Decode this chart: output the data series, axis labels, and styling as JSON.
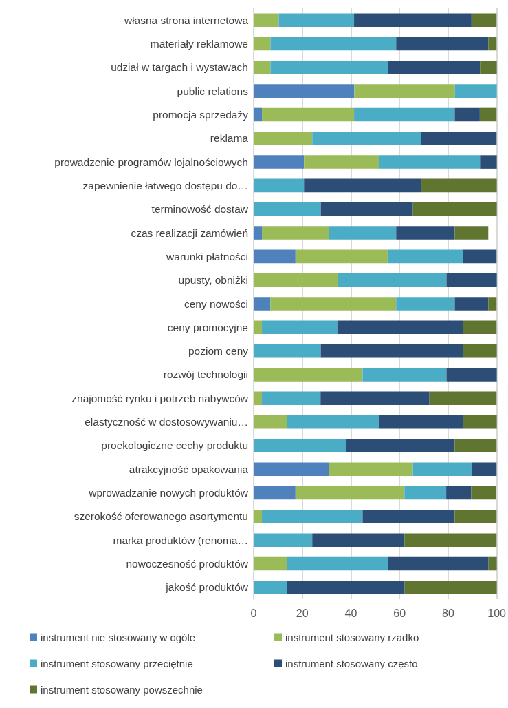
{
  "chart_data": {
    "type": "bar",
    "orientation": "horizontal",
    "stacked": true,
    "categories": [
      "własna strona internetowa",
      "materiały reklamowe",
      "udział w targach i wystawach",
      "public relations",
      "promocja sprzedaży",
      "reklama",
      "prowadzenie programów lojalnościowych",
      "zapewnienie łatwego dostępu do…",
      "terminowość dostaw",
      "czas realizacji zamówień",
      "warunki płatności",
      "upusty, obniżki",
      "ceny nowości",
      "ceny promocyjne",
      "poziom ceny",
      "rozwój technologii",
      "znajomość rynku i potrzeb nabywców",
      "elastyczność w dostosowywaniu…",
      "proekologiczne cechy produktu",
      "atrakcyjność opakowania",
      "wprowadzanie nowych produktów",
      "szerokość oferowanego asortymentu",
      "marka produktów (renoma…",
      "nowoczesność produktów",
      "jakość produktów"
    ],
    "series": [
      {
        "name": "instrument nie stosowany w ogóle",
        "color": "#4f81bd",
        "values": [
          0,
          0,
          0,
          41.4,
          3.4,
          0,
          20.7,
          0,
          0,
          3.4,
          17.2,
          0,
          6.9,
          0,
          0,
          0,
          0,
          0,
          0,
          31.0,
          17.2,
          0,
          0,
          0,
          0
        ]
      },
      {
        "name": "instrument stosowany rzadko",
        "color": "#9bbb59",
        "values": [
          10.3,
          6.9,
          6.9,
          41.4,
          37.9,
          24.1,
          31.0,
          0,
          0,
          27.6,
          37.9,
          34.5,
          51.7,
          3.4,
          0,
          44.8,
          3.4,
          13.8,
          0,
          34.5,
          44.8,
          3.4,
          0,
          13.8,
          0
        ]
      },
      {
        "name": "instrument stosowany przeciętnie",
        "color": "#4bacc6",
        "values": [
          31.0,
          51.7,
          48.3,
          17.2,
          41.4,
          44.8,
          41.4,
          20.7,
          27.6,
          27.6,
          31.0,
          44.8,
          24.1,
          31.0,
          27.6,
          34.5,
          24.1,
          37.9,
          37.9,
          24.1,
          17.2,
          41.4,
          24.1,
          41.4,
          13.8
        ]
      },
      {
        "name": "instrument stosowany często",
        "color": "#2c4d75",
        "values": [
          48.3,
          37.9,
          37.9,
          0,
          10.3,
          31.0,
          6.9,
          48.3,
          37.9,
          24.1,
          13.8,
          20.7,
          13.8,
          51.7,
          58.6,
          20.7,
          44.8,
          34.5,
          44.8,
          10.3,
          10.3,
          37.9,
          37.9,
          41.4,
          48.3
        ]
      },
      {
        "name": "instrument stosowany powszechnie",
        "color": "#5f7530",
        "values": [
          10.3,
          3.4,
          6.9,
          0,
          6.9,
          0,
          0,
          31.0,
          34.5,
          13.8,
          0,
          0,
          3.4,
          13.8,
          13.8,
          0,
          27.6,
          13.8,
          17.2,
          0,
          10.3,
          17.2,
          37.9,
          3.4,
          37.9
        ]
      }
    ],
    "xlim": [
      0,
      100
    ],
    "xticks": [
      0,
      20,
      40,
      60,
      80,
      100
    ],
    "grid": "x",
    "legend": "bottom"
  }
}
